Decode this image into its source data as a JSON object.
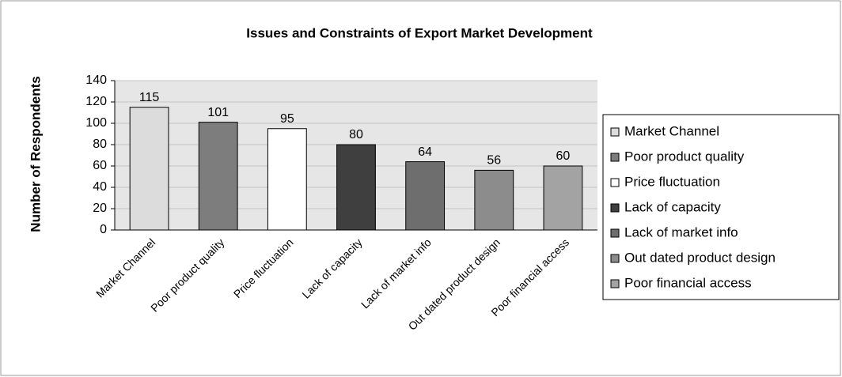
{
  "chart_data": {
    "type": "bar",
    "title": "Issues and Constraints of Export Market Development",
    "y_label": "Number of Respondents",
    "categories": [
      "Market Channel",
      "Poor product quality",
      "Price fluctuation",
      "Lack of capacity",
      "Lack of market info",
      "Out dated product design",
      "Poor financial access"
    ],
    "values": [
      115,
      101,
      95,
      80,
      64,
      56,
      60
    ],
    "colors": [
      "#dcdcdc",
      "#7d7d7d",
      "#ffffff",
      "#3f3f3f",
      "#6e6e6e",
      "#8c8c8c",
      "#a3a3a3"
    ],
    "ylim": [
      0,
      140
    ],
    "yticks": [
      0,
      20,
      40,
      60,
      80,
      100,
      120,
      140
    ],
    "grid": true,
    "legend": "right"
  }
}
